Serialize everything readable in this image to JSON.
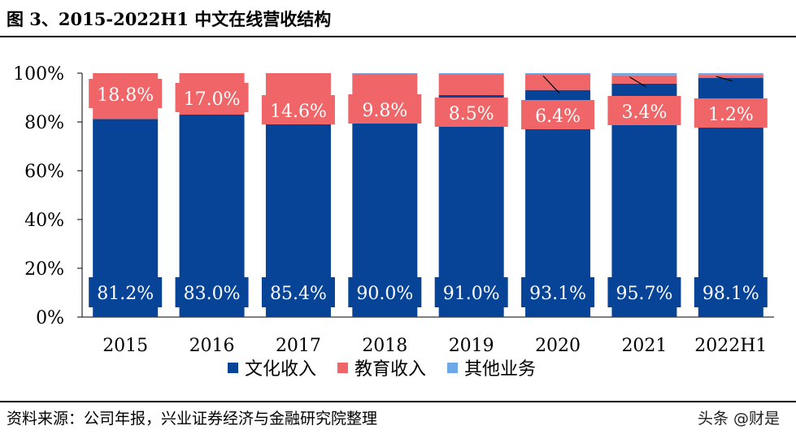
{
  "title": "图 3、2015-2022H1 中文在线营收结构",
  "source": "资料来源：公司年报，兴业证券经济与金融研究院整理",
  "watermark": "头条 @财是",
  "colors": {
    "culture": "#074497",
    "education": "#f06567",
    "other": "#6fa8e6"
  },
  "chart_data": {
    "type": "bar",
    "stacked": true,
    "categories": [
      "2015",
      "2016",
      "2017",
      "2018",
      "2019",
      "2020",
      "2021",
      "2022H1"
    ],
    "series": [
      {
        "name": "文化收入",
        "values": [
          81.2,
          83.0,
          85.4,
          90.0,
          91.0,
          93.1,
          95.7,
          98.1
        ],
        "labels": [
          "81.2%",
          "83.0%",
          "85.4%",
          "90.0%",
          "91.0%",
          "93.1%",
          "95.7%",
          "98.1%"
        ]
      },
      {
        "name": "教育收入",
        "values": [
          18.8,
          17.0,
          14.6,
          9.8,
          8.5,
          6.4,
          3.4,
          1.2
        ],
        "labels": [
          "18.8%",
          "17.0%",
          "14.6%",
          "9.8%",
          "8.5%",
          "6.4%",
          "3.4%",
          "1.2%"
        ]
      },
      {
        "name": "其他业务",
        "values": [
          0.0,
          0.0,
          0.0,
          0.2,
          0.5,
          0.5,
          0.9,
          0.7
        ]
      }
    ],
    "yticks": [
      "0%",
      "20%",
      "40%",
      "60%",
      "80%",
      "100%"
    ],
    "ylim": [
      0,
      100
    ],
    "legend_position": "bottom",
    "grid": false
  }
}
